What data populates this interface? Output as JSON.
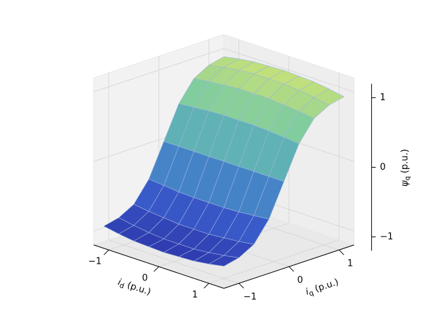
{
  "chart_data": {
    "type": "surface3d",
    "xlabel": {
      "symbol": "i",
      "subscript": "d",
      "unit": "(p.u.)"
    },
    "ylabel": {
      "symbol": "i",
      "subscript": "q",
      "unit": "(p.u.)"
    },
    "zlabel": {
      "symbol": "ψ",
      "subscript": "q",
      "unit": "(p.u.)"
    },
    "xlim": [
      -1.3,
      1.3
    ],
    "ylim": [
      -1.3,
      1.3
    ],
    "zlim": [
      -1.2,
      1.2
    ],
    "xticks": [
      {
        "value": -1,
        "label": "−1"
      },
      0,
      1
    ],
    "yticks": [
      {
        "value": -1,
        "label": "−1"
      },
      0,
      1
    ],
    "zticks": [
      {
        "value": -1,
        "label": "−1"
      },
      0,
      1
    ],
    "grid": true,
    "colormap": [
      "#1a1a9a",
      "#2a50c8",
      "#3f98c0",
      "#72c89a",
      "#e4ea5c"
    ],
    "surface": {
      "x": [
        -1.2,
        -0.9,
        -0.6,
        -0.3,
        0,
        0.3,
        0.6,
        0.9,
        1.2
      ],
      "y": [
        -1.2,
        -0.9,
        -0.6,
        -0.3,
        0,
        0.3,
        0.6,
        0.9,
        1.2
      ],
      "z": [
        [
          -0.93,
          -0.88,
          -0.76,
          -0.47,
          0,
          0.47,
          0.76,
          0.88,
          0.93
        ],
        [
          -0.97,
          -0.92,
          -0.79,
          -0.49,
          0,
          0.49,
          0.79,
          0.92,
          0.97
        ],
        [
          -1.0,
          -0.95,
          -0.81,
          -0.51,
          0,
          0.51,
          0.81,
          0.95,
          1.0
        ],
        [
          -1.01,
          -0.97,
          -0.83,
          -0.52,
          0,
          0.52,
          0.83,
          0.97,
          1.01
        ],
        [
          -1.02,
          -0.97,
          -0.83,
          -0.52,
          0,
          0.52,
          0.83,
          0.97,
          1.02
        ],
        [
          -1.01,
          -0.97,
          -0.83,
          -0.52,
          0,
          0.52,
          0.83,
          0.97,
          1.01
        ],
        [
          -1.0,
          -0.95,
          -0.81,
          -0.51,
          0,
          0.51,
          0.81,
          0.95,
          1.0
        ],
        [
          -0.97,
          -0.92,
          -0.79,
          -0.49,
          0,
          0.49,
          0.79,
          0.92,
          0.97
        ],
        [
          -0.93,
          -0.88,
          -0.76,
          -0.47,
          0,
          0.47,
          0.76,
          0.88,
          0.93
        ]
      ]
    }
  }
}
